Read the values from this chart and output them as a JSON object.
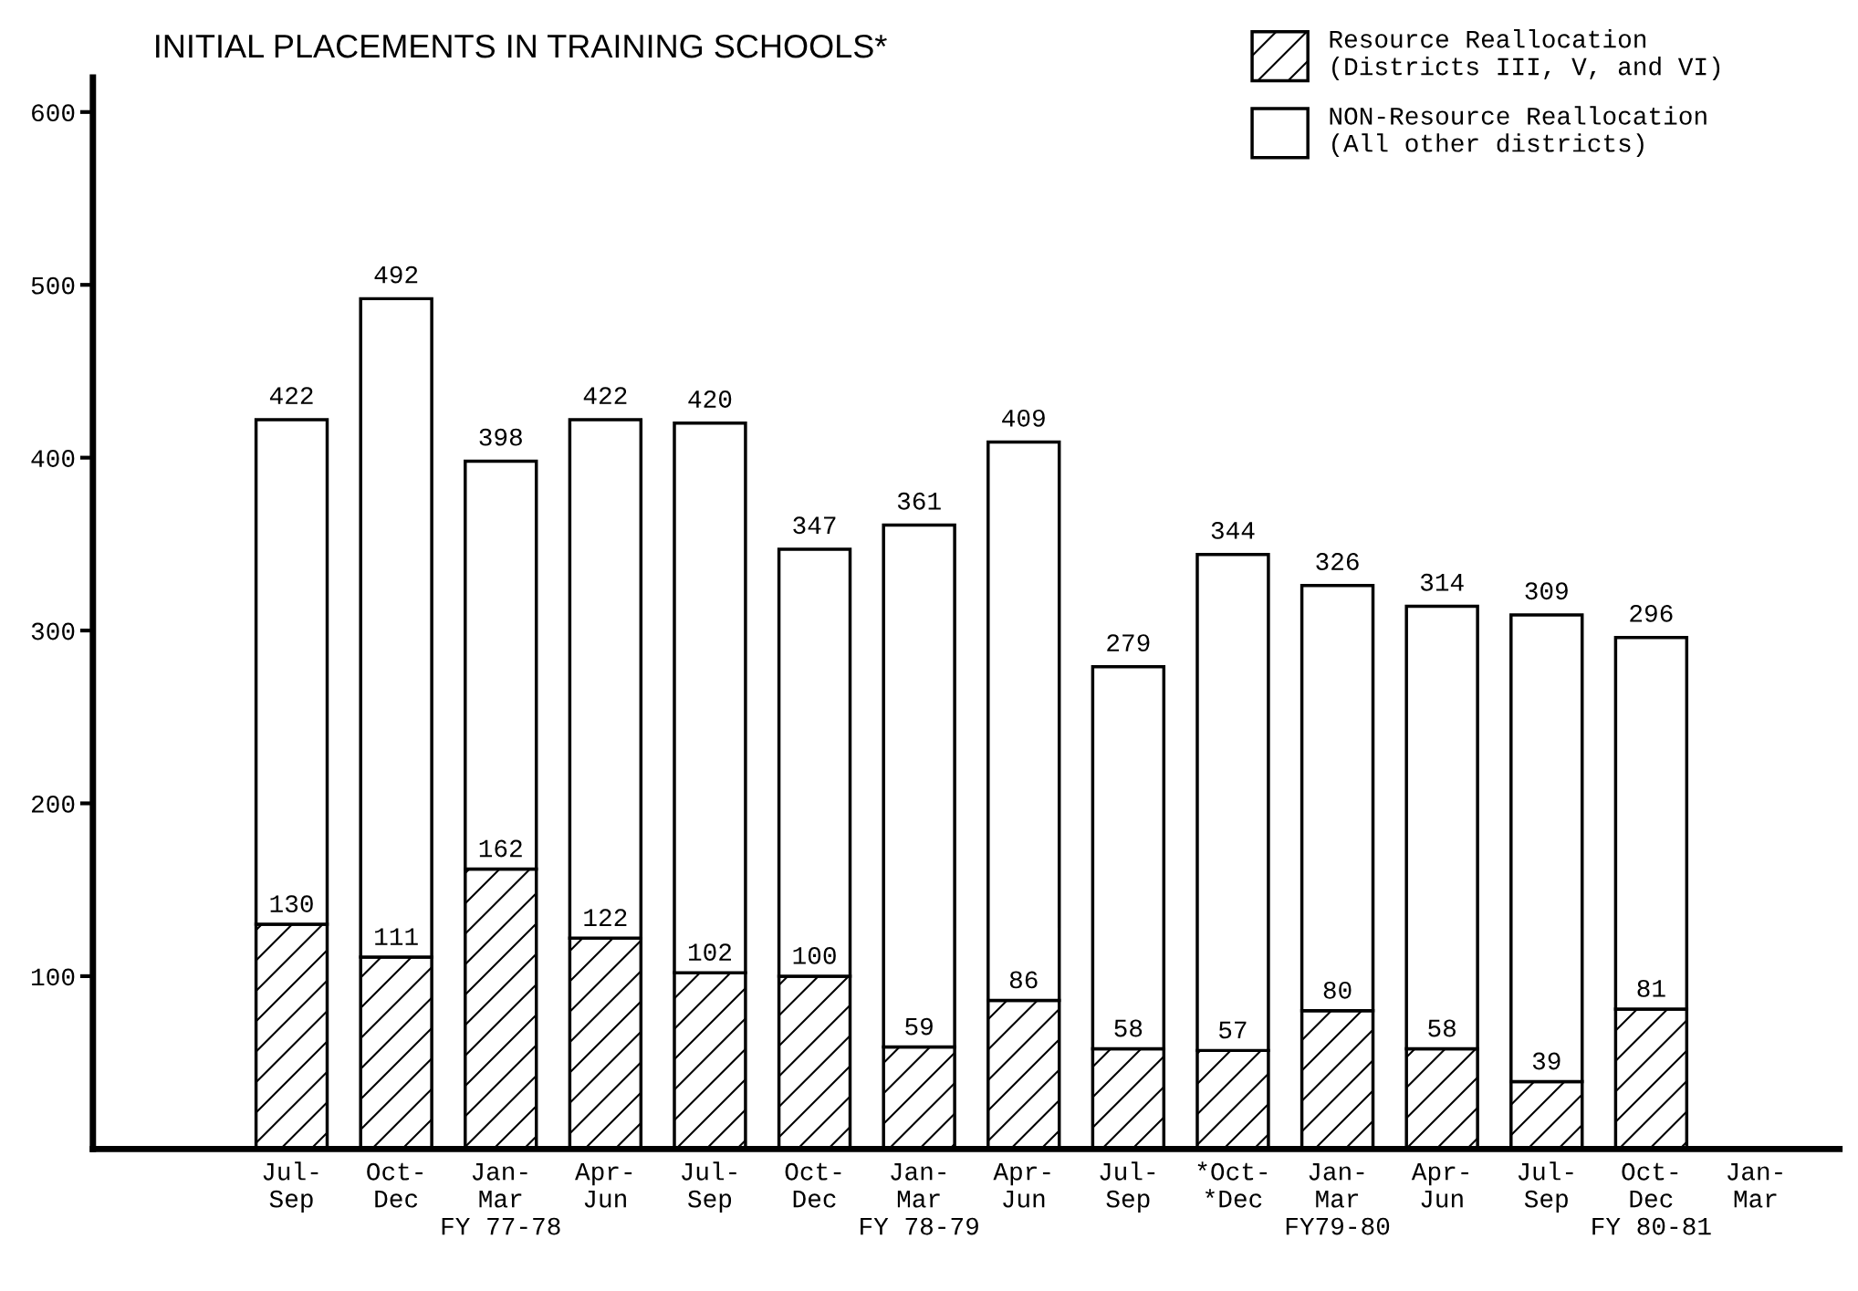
{
  "chart_data": {
    "type": "bar",
    "title": "INITIAL PLACEMENTS IN TRAINING SCHOOLS*",
    "stacked": true,
    "categories": [
      "Jul-\nSep",
      "Oct-\nDec",
      "Jan-\nMar\nFY 77-78",
      "Apr-\nJun",
      "Jul-\nSep",
      "Oct-\nDec",
      "Jan-\nMar\nFY 78-79",
      "Apr-\nJun",
      "Jul-\nSep",
      "*Oct-\n*Dec",
      "Jan-\nMar\nFY79-80",
      "Apr-\nJun",
      "Jul-\nSep",
      "Oct-\nDec\nFY 80-81",
      "Jan-\nMar"
    ],
    "series": [
      {
        "name": "Resource Reallocation\n(Districts III, V, and VI)",
        "color": "#000000",
        "values": [
          130,
          111,
          162,
          122,
          102,
          100,
          59,
          86,
          58,
          57,
          80,
          58,
          39,
          81,
          null
        ],
        "value_labels": [
          "130",
          "111",
          "162",
          "122",
          "102",
          "100",
          "59",
          "86",
          "58",
          "57",
          "80",
          "58",
          "39",
          "81",
          null
        ]
      },
      {
        "name": "NON-Resource Reallocation\n(All other districts)",
        "color": "#ffffff",
        "values": [
          292,
          381,
          236,
          300,
          318,
          247,
          302,
          323,
          221,
          287,
          246,
          256,
          270,
          215,
          null
        ]
      }
    ],
    "totals": [
      "422",
      "492",
      "398",
      "422",
      "420",
      "347",
      "361",
      "409",
      "279",
      "344",
      "326",
      "314",
      "309",
      "296",
      null
    ],
    "ylim": [
      0,
      620
    ],
    "yticks": [
      100,
      200,
      300,
      400,
      500,
      600
    ],
    "grid": false,
    "legend": "top right"
  }
}
